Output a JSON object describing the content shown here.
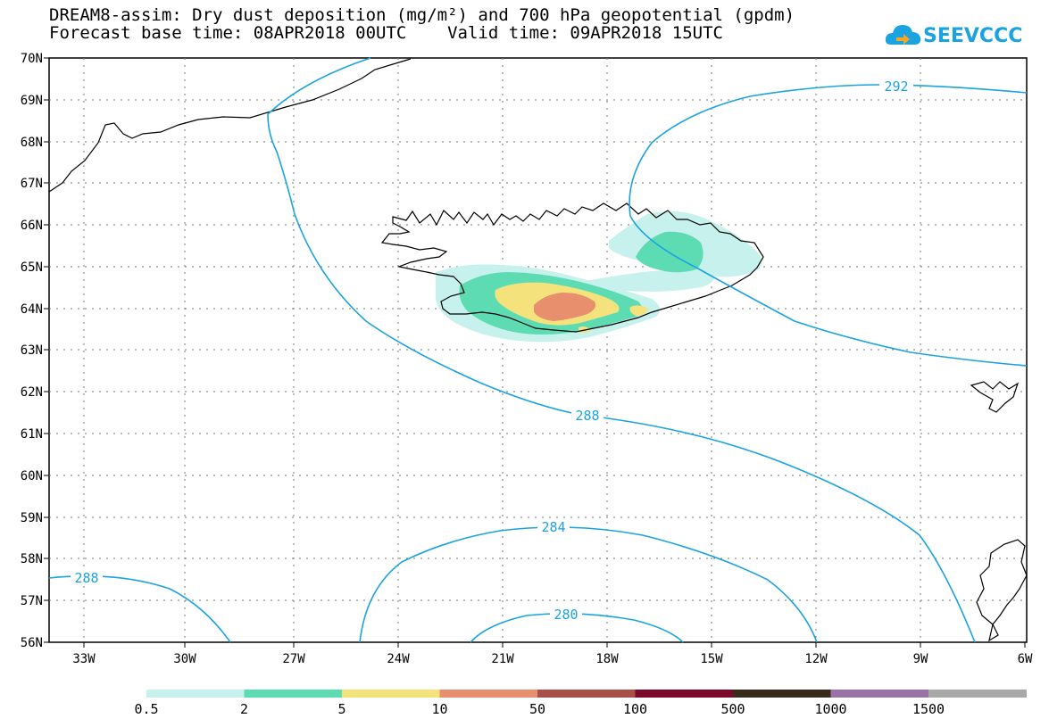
{
  "title": {
    "line1": "DREAM8-assim: Dry dust deposition (mg/m²) and 700 hPa geopotential (gpdm)",
    "line2": "Forecast base time: 08APR2018 00UTC    Valid time: 09APR2018 15UTC"
  },
  "logo": {
    "text": "SEEVCCC",
    "icon": "cloud-logo-icon",
    "color": "#1aa3e0"
  },
  "map": {
    "lat_labels": [
      "70N",
      "69N",
      "68N",
      "67N",
      "66N",
      "65N",
      "64N",
      "63N",
      "62N",
      "61N",
      "60N",
      "59N",
      "58N",
      "57N",
      "56N"
    ],
    "lon_labels": [
      "33W",
      "30W",
      "27W",
      "24W",
      "21W",
      "18W",
      "15W",
      "12W",
      "9W",
      "6W"
    ],
    "contour_labels": [
      {
        "id": "c292",
        "text": "292"
      },
      {
        "id": "c288a",
        "text": "288"
      },
      {
        "id": "c284",
        "text": "284"
      },
      {
        "id": "c288b",
        "text": "288"
      },
      {
        "id": "c280",
        "text": "280"
      }
    ],
    "contour_color": "#1aa3e0"
  },
  "legend": {
    "colors": [
      "#c6f1ec",
      "#5ddcb4",
      "#f4e27c",
      "#e88f6d",
      "#a84f48",
      "#7b0a2a",
      "#3a2a1c",
      "#9a73a6",
      "#a8a8a8"
    ],
    "labels": [
      "0.5",
      "2",
      "5",
      "10",
      "50",
      "100",
      "500",
      "1000",
      "1500"
    ]
  }
}
